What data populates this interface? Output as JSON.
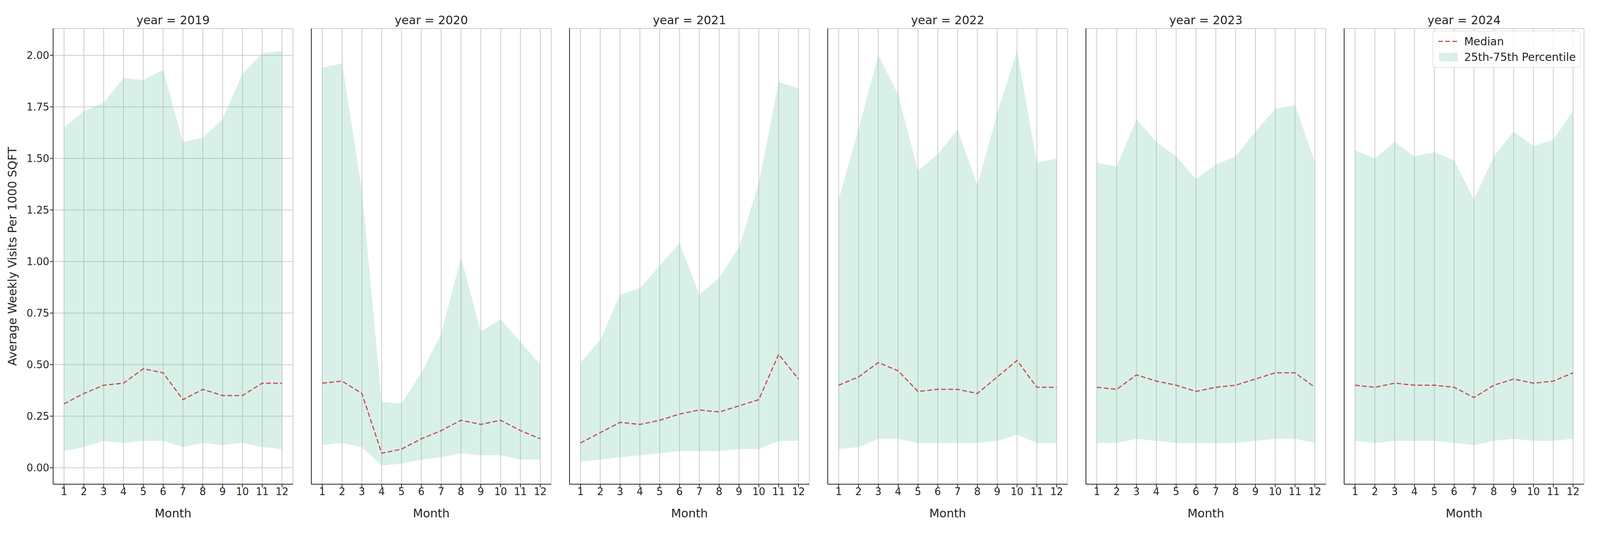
{
  "chart_data": [
    {
      "type": "line",
      "title": "year = 2019",
      "x_label": "Month",
      "y_label": "Average Weekly Visits Per 1000 SQFT",
      "x": [
        1,
        2,
        3,
        4,
        5,
        6,
        7,
        8,
        9,
        10,
        11,
        12
      ],
      "xlim": [
        0.45,
        12.55
      ],
      "xticks": [
        1,
        2,
        3,
        4,
        5,
        6,
        7,
        8,
        9,
        10,
        11,
        12
      ],
      "ylim": [
        -0.08,
        2.13
      ],
      "yticks": [
        {
          "value": 0,
          "label": "0.00"
        },
        {
          "value": 0.25,
          "label": "0.25"
        },
        {
          "value": 0.5,
          "label": "0.50"
        },
        {
          "value": 0.75,
          "label": "0.75"
        },
        {
          "value": 1,
          "label": "1.00"
        },
        {
          "value": 1.25,
          "label": "1.25"
        },
        {
          "value": 1.5,
          "label": "1.50"
        },
        {
          "value": 1.75,
          "label": "1.75"
        },
        {
          "value": 2,
          "label": "2.00"
        }
      ],
      "grid": true,
      "series": [
        {
          "name": "Median",
          "type": "line",
          "color": "#c44e52",
          "line_style": "dashed",
          "values": [
            0.31,
            0.36,
            0.4,
            0.41,
            0.48,
            0.46,
            0.33,
            0.38,
            0.35,
            0.35,
            0.41,
            0.41
          ]
        },
        {
          "name": "25th-75th Percentile",
          "type": "area",
          "color": "#66c2a5",
          "values": [
            [
              0.08,
              1.65
            ],
            [
              0.1,
              1.73
            ],
            [
              0.13,
              1.77
            ],
            [
              0.12,
              1.89
            ],
            [
              0.13,
              1.88
            ],
            [
              0.13,
              1.93
            ],
            [
              0.1,
              1.58
            ],
            [
              0.12,
              1.6
            ],
            [
              0.11,
              1.69
            ],
            [
              0.12,
              1.91
            ],
            [
              0.1,
              2.01
            ],
            [
              0.09,
              2.02
            ]
          ]
        }
      ]
    },
    {
      "type": "line",
      "title": "year = 2020",
      "x_label": "Month",
      "tick_labels": "x",
      "x": [
        1,
        2,
        3,
        4,
        5,
        6,
        7,
        8,
        9,
        10,
        11,
        12
      ],
      "xlim": [
        0.45,
        12.55
      ],
      "xticks": [
        1,
        2,
        3,
        4,
        5,
        6,
        7,
        8,
        9,
        10,
        11,
        12
      ],
      "ylim": [
        -0.08,
        2.13
      ],
      "yticks": [
        0,
        0.25,
        0.5,
        0.75,
        1,
        1.25,
        1.5,
        1.75,
        2
      ],
      "grid": true,
      "series": [
        {
          "name": "Median",
          "type": "line",
          "color": "#c44e52",
          "line_style": "dashed",
          "values": [
            0.41,
            0.42,
            0.36,
            0.07,
            0.09,
            0.14,
            0.18,
            0.23,
            0.21,
            0.23,
            0.18,
            0.14
          ]
        },
        {
          "name": "25th-75th Percentile",
          "type": "area",
          "color": "#66c2a5",
          "values": [
            [
              0.11,
              1.94
            ],
            [
              0.12,
              1.96
            ],
            [
              0.1,
              1.35
            ],
            [
              0.01,
              0.32
            ],
            [
              0.02,
              0.31
            ],
            [
              0.04,
              0.46
            ],
            [
              0.05,
              0.65
            ],
            [
              0.07,
              1.02
            ],
            [
              0.06,
              0.66
            ],
            [
              0.06,
              0.72
            ],
            [
              0.04,
              0.61
            ],
            [
              0.04,
              0.5
            ]
          ]
        }
      ]
    },
    {
      "type": "line",
      "title": "year = 2021",
      "x_label": "Month",
      "tick_labels": "x",
      "x": [
        1,
        2,
        3,
        4,
        5,
        6,
        7,
        8,
        9,
        10,
        11,
        12
      ],
      "xlim": [
        0.45,
        12.55
      ],
      "xticks": [
        1,
        2,
        3,
        4,
        5,
        6,
        7,
        8,
        9,
        10,
        11,
        12
      ],
      "ylim": [
        -0.08,
        2.13
      ],
      "yticks": [
        0,
        0.25,
        0.5,
        0.75,
        1,
        1.25,
        1.5,
        1.75,
        2
      ],
      "grid": true,
      "series": [
        {
          "name": "Median",
          "type": "line",
          "color": "#c44e52",
          "line_style": "dashed",
          "values": [
            0.12,
            0.17,
            0.22,
            0.21,
            0.23,
            0.26,
            0.28,
            0.27,
            0.3,
            0.33,
            0.55,
            0.43
          ]
        },
        {
          "name": "25th-75th Percentile",
          "type": "area",
          "color": "#66c2a5",
          "values": [
            [
              0.03,
              0.51
            ],
            [
              0.04,
              0.62
            ],
            [
              0.05,
              0.84
            ],
            [
              0.06,
              0.87
            ],
            [
              0.07,
              0.98
            ],
            [
              0.08,
              1.09
            ],
            [
              0.08,
              0.84
            ],
            [
              0.08,
              0.92
            ],
            [
              0.09,
              1.07
            ],
            [
              0.09,
              1.38
            ],
            [
              0.13,
              1.87
            ],
            [
              0.13,
              1.84
            ]
          ]
        }
      ]
    },
    {
      "type": "line",
      "title": "year = 2022",
      "x_label": "Month",
      "tick_labels": "x",
      "x": [
        1,
        2,
        3,
        4,
        5,
        6,
        7,
        8,
        9,
        10,
        11,
        12
      ],
      "xlim": [
        0.45,
        12.55
      ],
      "xticks": [
        1,
        2,
        3,
        4,
        5,
        6,
        7,
        8,
        9,
        10,
        11,
        12
      ],
      "ylim": [
        -0.08,
        2.13
      ],
      "yticks": [
        0,
        0.25,
        0.5,
        0.75,
        1,
        1.25,
        1.5,
        1.75,
        2
      ],
      "grid": true,
      "series": [
        {
          "name": "Median",
          "type": "line",
          "color": "#c44e52",
          "line_style": "dashed",
          "values": [
            0.4,
            0.44,
            0.51,
            0.47,
            0.37,
            0.38,
            0.38,
            0.36,
            0.44,
            0.52,
            0.39,
            0.39
          ]
        },
        {
          "name": "25th-75th Percentile",
          "type": "area",
          "color": "#66c2a5",
          "values": [
            [
              0.09,
              1.3
            ],
            [
              0.1,
              1.64
            ],
            [
              0.14,
              2.0
            ],
            [
              0.14,
              1.81
            ],
            [
              0.12,
              1.44
            ],
            [
              0.12,
              1.52
            ],
            [
              0.12,
              1.64
            ],
            [
              0.12,
              1.37
            ],
            [
              0.13,
              1.72
            ],
            [
              0.16,
              2.02
            ],
            [
              0.12,
              1.48
            ],
            [
              0.12,
              1.5
            ]
          ]
        }
      ]
    },
    {
      "type": "line",
      "title": "year = 2023",
      "x_label": "Month",
      "tick_labels": "x",
      "x": [
        1,
        2,
        3,
        4,
        5,
        6,
        7,
        8,
        9,
        10,
        11,
        12
      ],
      "xlim": [
        0.45,
        12.55
      ],
      "xticks": [
        1,
        2,
        3,
        4,
        5,
        6,
        7,
        8,
        9,
        10,
        11,
        12
      ],
      "ylim": [
        -0.08,
        2.13
      ],
      "yticks": [
        0,
        0.25,
        0.5,
        0.75,
        1,
        1.25,
        1.5,
        1.75,
        2
      ],
      "grid": true,
      "series": [
        {
          "name": "Median",
          "type": "line",
          "color": "#c44e52",
          "line_style": "dashed",
          "values": [
            0.39,
            0.38,
            0.45,
            0.42,
            0.4,
            0.37,
            0.39,
            0.4,
            0.43,
            0.46,
            0.46,
            0.39
          ]
        },
        {
          "name": "25th-75th Percentile",
          "type": "area",
          "color": "#66c2a5",
          "values": [
            [
              0.12,
              1.48
            ],
            [
              0.12,
              1.46
            ],
            [
              0.14,
              1.69
            ],
            [
              0.13,
              1.58
            ],
            [
              0.12,
              1.51
            ],
            [
              0.12,
              1.4
            ],
            [
              0.12,
              1.47
            ],
            [
              0.12,
              1.51
            ],
            [
              0.13,
              1.63
            ],
            [
              0.14,
              1.74
            ],
            [
              0.14,
              1.76
            ],
            [
              0.12,
              1.48
            ]
          ]
        }
      ]
    },
    {
      "type": "line",
      "title": "year = 2024",
      "x_label": "Month",
      "tick_labels": "x",
      "legend": "upper right",
      "x": [
        1,
        2,
        3,
        4,
        5,
        6,
        7,
        8,
        9,
        10,
        11,
        12
      ],
      "xlim": [
        0.45,
        12.55
      ],
      "xticks": [
        1,
        2,
        3,
        4,
        5,
        6,
        7,
        8,
        9,
        10,
        11,
        12
      ],
      "ylim": [
        -0.08,
        2.13
      ],
      "yticks": [
        0,
        0.25,
        0.5,
        0.75,
        1,
        1.25,
        1.5,
        1.75,
        2
      ],
      "grid": true,
      "series": [
        {
          "name": "Median",
          "type": "line",
          "color": "#c44e52",
          "line_style": "dashed",
          "values": [
            0.4,
            0.39,
            0.41,
            0.4,
            0.4,
            0.39,
            0.34,
            0.4,
            0.43,
            0.41,
            0.42,
            0.46
          ]
        },
        {
          "name": "25th-75th Percentile",
          "type": "area",
          "color": "#66c2a5",
          "values": [
            [
              0.13,
              1.54
            ],
            [
              0.12,
              1.5
            ],
            [
              0.13,
              1.58
            ],
            [
              0.13,
              1.51
            ],
            [
              0.13,
              1.53
            ],
            [
              0.12,
              1.49
            ],
            [
              0.11,
              1.3
            ],
            [
              0.13,
              1.51
            ],
            [
              0.14,
              1.63
            ],
            [
              0.13,
              1.56
            ],
            [
              0.13,
              1.59
            ],
            [
              0.14,
              1.73
            ]
          ]
        }
      ]
    }
  ]
}
